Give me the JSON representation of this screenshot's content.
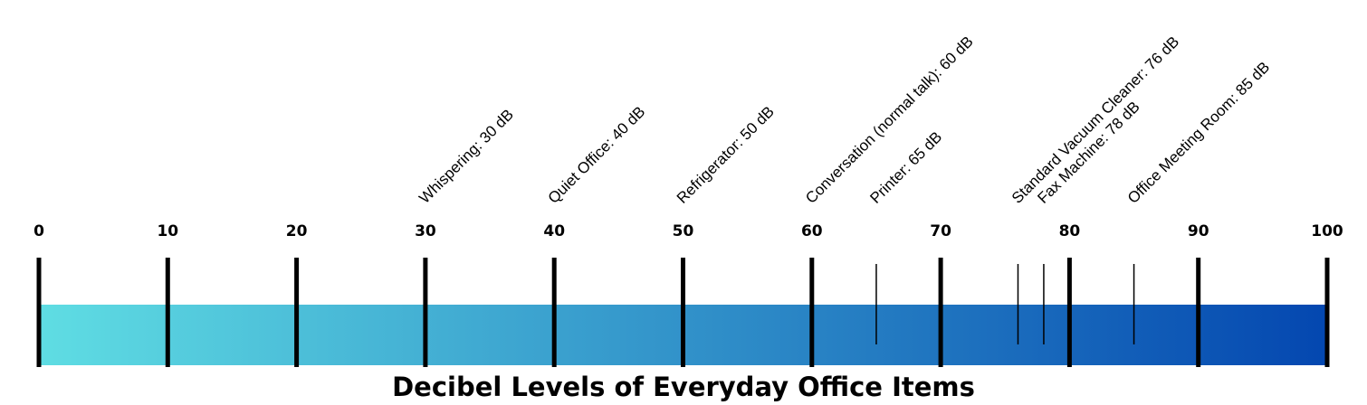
{
  "chart_data": {
    "type": "scale",
    "title": "Decibel Levels of Everyday Office Items",
    "xlim": [
      0,
      100
    ],
    "xticks": [
      0,
      10,
      20,
      30,
      40,
      50,
      60,
      70,
      80,
      90,
      100
    ],
    "values": [
      30,
      40,
      50,
      60,
      65,
      76,
      78,
      85
    ],
    "value_labels": [
      "Whispering: 30 dB",
      "Quiet Office: 40 dB",
      "Refrigerator: 50 dB",
      "Conversation (normal talk): 60 dB",
      "Printer: 65 dB",
      "Standard Vacuum Cleaner: 76 dB",
      "Fax Machine: 78 dB",
      "Office Meeting Room: 85 dB"
    ],
    "colors": [
      "#5fdde3",
      "#0447b0"
    ]
  }
}
